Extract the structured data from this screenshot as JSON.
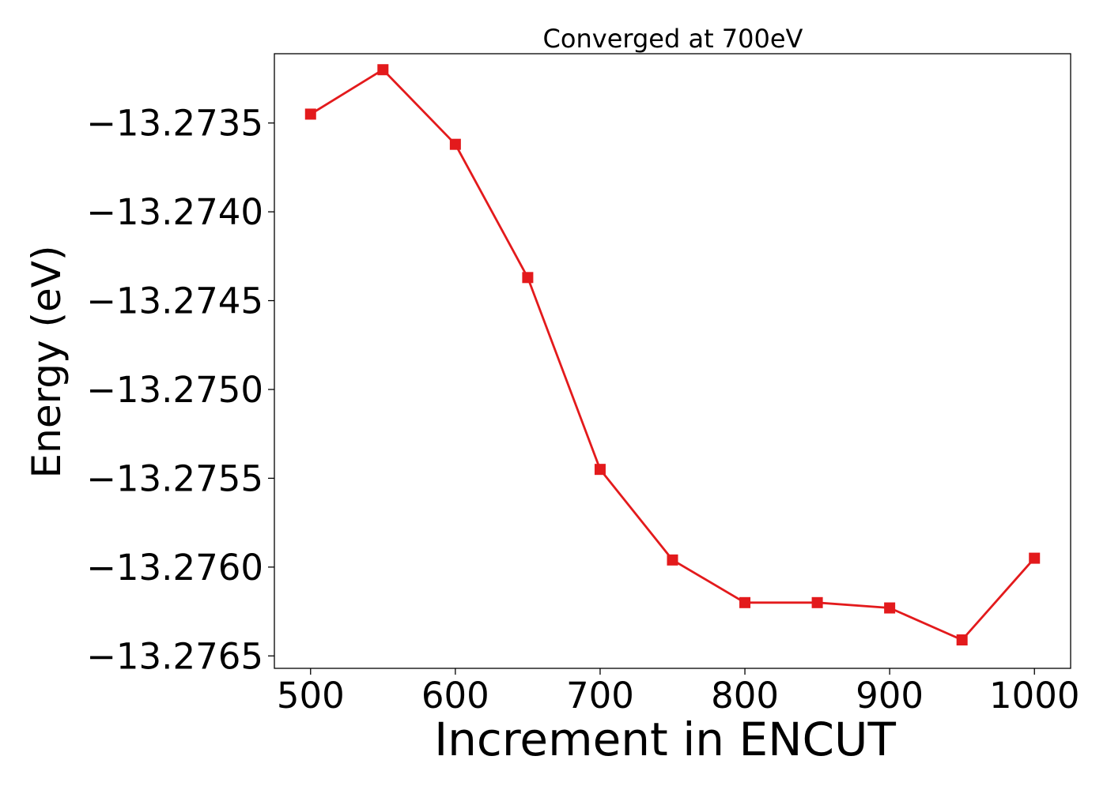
{
  "chart_data": {
    "type": "line",
    "title": "Converged at 700eV",
    "xlabel": "Increment in ENCUT",
    "ylabel": "Energy (eV)",
    "xlim": [
      475,
      1025
    ],
    "ylim": [
      -13.27657,
      -13.27311
    ],
    "xticks": [
      500,
      600,
      700,
      800,
      900,
      1000
    ],
    "xtick_labels": [
      "500",
      "600",
      "700",
      "800",
      "900",
      "1000"
    ],
    "yticks": [
      -13.2735,
      -13.274,
      -13.2745,
      -13.275,
      -13.2755,
      -13.276,
      -13.2765
    ],
    "ytick_labels": [
      "−13.2735",
      "−13.2740",
      "−13.2745",
      "−13.2750",
      "−13.2755",
      "−13.2760",
      "−13.2765"
    ],
    "grid": false,
    "series": [
      {
        "color": "#e31a1c",
        "marker": "square",
        "x": [
          500,
          550,
          600,
          650,
          700,
          750,
          800,
          850,
          900,
          950,
          1000
        ],
        "y": [
          -13.27345,
          -13.2732,
          -13.27362,
          -13.27437,
          -13.27545,
          -13.27596,
          -13.2762,
          -13.2762,
          -13.27623,
          -13.27641,
          -13.27595
        ]
      }
    ]
  }
}
